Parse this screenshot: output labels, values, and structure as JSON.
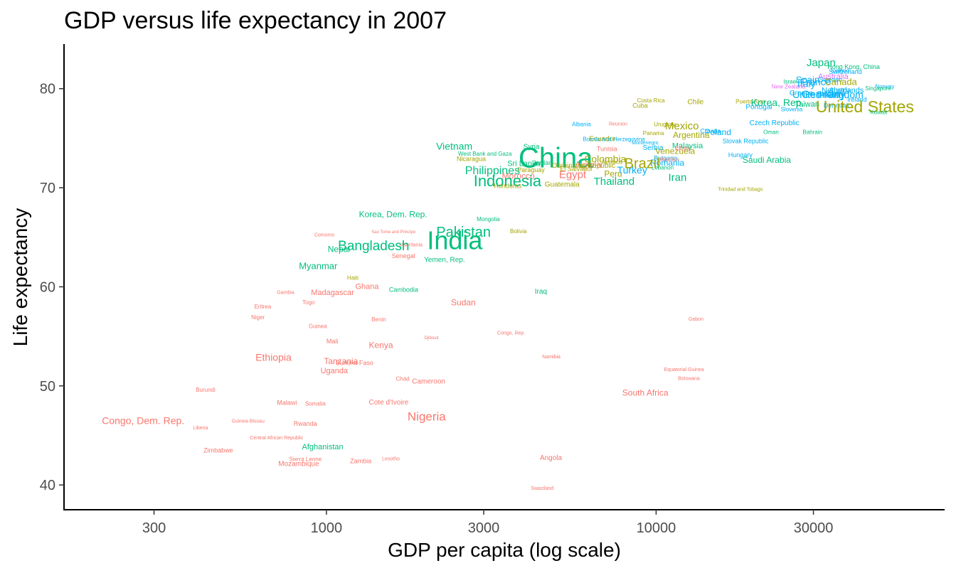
{
  "chart_data": {
    "type": "scatter",
    "mark": "text",
    "title": "GDP versus life expectancy in 2007",
    "xlabel": "GDP per capita (log scale)",
    "ylabel": "Life expectancy",
    "x_scale": "log10",
    "xlim": [
      160,
      75000
    ],
    "ylim": [
      37.5,
      84.5
    ],
    "x_ticks": [
      300,
      1000,
      3000,
      10000,
      30000
    ],
    "x_tick_labels": [
      "300",
      "1000",
      "3000",
      "10000",
      "30000"
    ],
    "y_ticks": [
      40,
      50,
      60,
      70,
      80
    ],
    "y_tick_labels": [
      "40",
      "50",
      "60",
      "70",
      "80"
    ],
    "grid": false,
    "legend": "none",
    "color_by": "continent",
    "size_by": "population",
    "colors": {
      "Africa": "#F8766D",
      "Americas": "#A3A500",
      "Asia": "#00BF7D",
      "Europe": "#00B0F6",
      "Oceania": "#E76BF3"
    },
    "points": [
      {
        "name": "Japan",
        "x": 31656,
        "y": 82.6,
        "c": "Asia",
        "s": 15
      },
      {
        "name": "Hong Kong, China",
        "x": 39725,
        "y": 82.2,
        "c": "Asia",
        "s": 9
      },
      {
        "name": "Switzerland",
        "x": 37506,
        "y": 81.7,
        "c": "Europe",
        "s": 9
      },
      {
        "name": "Iceland",
        "x": 36181,
        "y": 81.8,
        "c": "Europe",
        "s": 8
      },
      {
        "name": "Australia",
        "x": 34435,
        "y": 81.2,
        "c": "Oceania",
        "s": 11
      },
      {
        "name": "Sweden",
        "x": 33860,
        "y": 80.9,
        "c": "Europe",
        "s": 9
      },
      {
        "name": "Spain",
        "x": 28821,
        "y": 80.9,
        "c": "Europe",
        "s": 13
      },
      {
        "name": "Israel",
        "x": 25523,
        "y": 80.7,
        "c": "Asia",
        "s": 8
      },
      {
        "name": "France",
        "x": 30470,
        "y": 80.7,
        "c": "Europe",
        "s": 14
      },
      {
        "name": "Canada",
        "x": 36319,
        "y": 80.7,
        "c": "Americas",
        "s": 13
      },
      {
        "name": "Italy",
        "x": 28570,
        "y": 80.5,
        "c": "Europe",
        "s": 14
      },
      {
        "name": "New Zealand",
        "x": 25185,
        "y": 80.2,
        "c": "Oceania",
        "s": 8
      },
      {
        "name": "Norway",
        "x": 49357,
        "y": 80.2,
        "c": "Europe",
        "s": 8
      },
      {
        "name": "Singapore",
        "x": 47143,
        "y": 80.0,
        "c": "Asia",
        "s": 8
      },
      {
        "name": "Austria",
        "x": 36126,
        "y": 79.8,
        "c": "Europe",
        "s": 10
      },
      {
        "name": "Netherlands",
        "x": 36798,
        "y": 79.8,
        "c": "Europe",
        "s": 11
      },
      {
        "name": "Belgium",
        "x": 33693,
        "y": 79.4,
        "c": "Europe",
        "s": 10
      },
      {
        "name": "Greece",
        "x": 27538,
        "y": 79.5,
        "c": "Europe",
        "s": 10
      },
      {
        "name": "United Kingdom",
        "x": 33203,
        "y": 79.4,
        "c": "Europe",
        "s": 14
      },
      {
        "name": "Germany",
        "x": 32170,
        "y": 79.4,
        "c": "Europe",
        "s": 15
      },
      {
        "name": "Finland",
        "x": 33207,
        "y": 79.3,
        "c": "Europe",
        "s": 9
      },
      {
        "name": "Ireland",
        "x": 40676,
        "y": 78.9,
        "c": "Europe",
        "s": 9
      },
      {
        "name": "Puerto Rico",
        "x": 19329,
        "y": 78.7,
        "c": "Americas",
        "s": 8
      },
      {
        "name": "Korea, Rep.",
        "x": 23348,
        "y": 78.6,
        "c": "Asia",
        "s": 14
      },
      {
        "name": "Taiwan",
        "x": 28718,
        "y": 78.4,
        "c": "Asia",
        "s": 11
      },
      {
        "name": "Denmark",
        "x": 35278,
        "y": 78.3,
        "c": "Europe",
        "s": 9
      },
      {
        "name": "United States",
        "x": 42952,
        "y": 78.2,
        "c": "Americas",
        "s": 23
      },
      {
        "name": "Portugal",
        "x": 20510,
        "y": 78.1,
        "c": "Europe",
        "s": 10
      },
      {
        "name": "Slovenia",
        "x": 25768,
        "y": 77.9,
        "c": "Europe",
        "s": 8
      },
      {
        "name": "Kuwait",
        "x": 47307,
        "y": 77.6,
        "c": "Asia",
        "s": 8
      },
      {
        "name": "Costa Rica",
        "x": 9645,
        "y": 78.8,
        "c": "Americas",
        "s": 8
      },
      {
        "name": "Cuba",
        "x": 8948,
        "y": 78.3,
        "c": "Americas",
        "s": 9
      },
      {
        "name": "Chile",
        "x": 13172,
        "y": 78.6,
        "c": "Americas",
        "s": 10
      },
      {
        "name": "Czech Republic",
        "x": 22833,
        "y": 76.5,
        "c": "Europe",
        "s": 10
      },
      {
        "name": "Albania",
        "x": 5937,
        "y": 76.4,
        "c": "Europe",
        "s": 8
      },
      {
        "name": "Reunion",
        "x": 7670,
        "y": 76.4,
        "c": "Africa",
        "s": 7
      },
      {
        "name": "Uruguay",
        "x": 10611,
        "y": 76.4,
        "c": "Americas",
        "s": 8
      },
      {
        "name": "Mexico",
        "x": 11978,
        "y": 76.2,
        "c": "Americas",
        "s": 15
      },
      {
        "name": "Panama",
        "x": 9809,
        "y": 75.5,
        "c": "Americas",
        "s": 8
      },
      {
        "name": "Oman",
        "x": 22316,
        "y": 75.6,
        "c": "Asia",
        "s": 8
      },
      {
        "name": "Bahrain",
        "x": 29796,
        "y": 75.6,
        "c": "Asia",
        "s": 8
      },
      {
        "name": "Poland",
        "x": 15390,
        "y": 75.6,
        "c": "Europe",
        "s": 12
      },
      {
        "name": "Argentina",
        "x": 12779,
        "y": 75.3,
        "c": "Americas",
        "s": 12
      },
      {
        "name": "Ecuador",
        "x": 6873,
        "y": 74.9,
        "c": "Americas",
        "s": 10
      },
      {
        "name": "Croatia",
        "x": 14619,
        "y": 75.7,
        "c": "Europe",
        "s": 9
      },
      {
        "name": "Slovak Republic",
        "x": 18678,
        "y": 74.7,
        "c": "Europe",
        "s": 9
      },
      {
        "name": "Bosnia and Herzegovina",
        "x": 7446,
        "y": 74.9,
        "c": "Europe",
        "s": 8
      },
      {
        "name": "Montenegro",
        "x": 9254,
        "y": 74.5,
        "c": "Europe",
        "s": 7
      },
      {
        "name": "Malaysia",
        "x": 12452,
        "y": 74.2,
        "c": "Asia",
        "s": 11
      },
      {
        "name": "Vietnam",
        "x": 2442,
        "y": 74.2,
        "c": "Asia",
        "s": 14
      },
      {
        "name": "Syria",
        "x": 4185,
        "y": 74.1,
        "c": "Asia",
        "s": 10
      },
      {
        "name": "Tunisia",
        "x": 7093,
        "y": 73.9,
        "c": "Africa",
        "s": 9
      },
      {
        "name": "Serbia",
        "x": 9787,
        "y": 74.0,
        "c": "Europe",
        "s": 10
      },
      {
        "name": "Venezuela",
        "x": 11416,
        "y": 73.7,
        "c": "Americas",
        "s": 12
      },
      {
        "name": "West Bank and Gaza",
        "x": 3025,
        "y": 73.4,
        "c": "Asia",
        "s": 8
      },
      {
        "name": "Hungary",
        "x": 18009,
        "y": 73.3,
        "c": "Europe",
        "s": 9
      },
      {
        "name": "Nicaragua",
        "x": 2749,
        "y": 72.9,
        "c": "Americas",
        "s": 9
      },
      {
        "name": "Saudi Arabia",
        "x": 21654,
        "y": 72.8,
        "c": "Asia",
        "s": 12
      },
      {
        "name": "China",
        "x": 4959,
        "y": 73.0,
        "c": "Asia",
        "s": 40
      },
      {
        "name": "Colombia",
        "x": 7006,
        "y": 72.9,
        "c": "Americas",
        "s": 14
      },
      {
        "name": "Bulgaria",
        "x": 10681,
        "y": 73.0,
        "c": "Europe",
        "s": 9
      },
      {
        "name": "Mauritius",
        "x": 10957,
        "y": 72.8,
        "c": "Africa",
        "s": 7
      },
      {
        "name": "Sri Lanka",
        "x": 3970,
        "y": 72.4,
        "c": "Asia",
        "s": 11
      },
      {
        "name": "Jamaica",
        "x": 7321,
        "y": 72.6,
        "c": "Americas",
        "s": 8
      },
      {
        "name": "Romania",
        "x": 10808,
        "y": 72.5,
        "c": "Europe",
        "s": 12
      },
      {
        "name": "Algeria",
        "x": 6223,
        "y": 72.3,
        "c": "Africa",
        "s": 12
      },
      {
        "name": "Dominican Republic",
        "x": 6025,
        "y": 72.2,
        "c": "Americas",
        "s": 10
      },
      {
        "name": "Jordan",
        "x": 4519,
        "y": 72.5,
        "c": "Asia",
        "s": 9
      },
      {
        "name": "Brazil",
        "x": 9066,
        "y": 72.4,
        "c": "Americas",
        "s": 20
      },
      {
        "name": "Libya",
        "x": 12057,
        "y": 74.0,
        "c": "Africa",
        "s": 9
      },
      {
        "name": "El Salvador",
        "x": 5728,
        "y": 71.9,
        "c": "Americas",
        "s": 9
      },
      {
        "name": "Lebanon",
        "x": 10461,
        "y": 72.0,
        "c": "Asia",
        "s": 8
      },
      {
        "name": "Paraguay",
        "x": 4173,
        "y": 71.8,
        "c": "Americas",
        "s": 9
      },
      {
        "name": "Turkey",
        "x": 8458,
        "y": 71.8,
        "c": "Europe",
        "s": 14
      },
      {
        "name": "Philippines",
        "x": 3190,
        "y": 71.7,
        "c": "Asia",
        "s": 16
      },
      {
        "name": "Peru",
        "x": 7409,
        "y": 71.4,
        "c": "Americas",
        "s": 12
      },
      {
        "name": "Egypt",
        "x": 5581,
        "y": 71.3,
        "c": "Africa",
        "s": 15
      },
      {
        "name": "Morocco",
        "x": 3820,
        "y": 71.2,
        "c": "Africa",
        "s": 12
      },
      {
        "name": "Iran",
        "x": 11606,
        "y": 71.0,
        "c": "Asia",
        "s": 15
      },
      {
        "name": "Indonesia",
        "x": 3541,
        "y": 70.7,
        "c": "Asia",
        "s": 22
      },
      {
        "name": "Thailand",
        "x": 7458,
        "y": 70.6,
        "c": "Asia",
        "s": 15
      },
      {
        "name": "Honduras",
        "x": 3548,
        "y": 70.2,
        "c": "Americas",
        "s": 9
      },
      {
        "name": "Guatemala",
        "x": 5186,
        "y": 70.3,
        "c": "Americas",
        "s": 10
      },
      {
        "name": "Trinidad and Tobago",
        "x": 18009,
        "y": 69.8,
        "c": "Americas",
        "s": 7
      },
      {
        "name": "Korea, Dem. Rep.",
        "x": 1593,
        "y": 67.3,
        "c": "Asia",
        "s": 12
      },
      {
        "name": "Mongolia",
        "x": 3096,
        "y": 66.8,
        "c": "Asia",
        "s": 8
      },
      {
        "name": "Bolivia",
        "x": 3822,
        "y": 65.6,
        "c": "Americas",
        "s": 8
      },
      {
        "name": "Sao Tome and Principe",
        "x": 1598,
        "y": 65.5,
        "c": "Africa",
        "s": 6
      },
      {
        "name": "Pakistan",
        "x": 2605,
        "y": 65.5,
        "c": "Asia",
        "s": 20
      },
      {
        "name": "Comoros",
        "x": 986,
        "y": 65.2,
        "c": "Africa",
        "s": 7
      },
      {
        "name": "India",
        "x": 2452,
        "y": 64.7,
        "c": "Asia",
        "s": 36
      },
      {
        "name": "Mauritania",
        "x": 1803,
        "y": 64.2,
        "c": "Africa",
        "s": 7
      },
      {
        "name": "Bangladesh",
        "x": 1391,
        "y": 64.1,
        "c": "Asia",
        "s": 19
      },
      {
        "name": "Nepal",
        "x": 1091,
        "y": 63.8,
        "c": "Asia",
        "s": 12
      },
      {
        "name": "Senegal",
        "x": 1712,
        "y": 63.1,
        "c": "Africa",
        "s": 9
      },
      {
        "name": "Yemen, Rep.",
        "x": 2281,
        "y": 62.7,
        "c": "Asia",
        "s": 10
      },
      {
        "name": "Myanmar",
        "x": 944,
        "y": 62.1,
        "c": "Asia",
        "s": 13
      },
      {
        "name": "Haiti",
        "x": 1202,
        "y": 60.9,
        "c": "Americas",
        "s": 8
      },
      {
        "name": "Ghana",
        "x": 1328,
        "y": 60.0,
        "c": "Africa",
        "s": 11
      },
      {
        "name": "Gambia",
        "x": 752,
        "y": 59.4,
        "c": "Africa",
        "s": 7
      },
      {
        "name": "Madagascar",
        "x": 1044,
        "y": 59.4,
        "c": "Africa",
        "s": 11
      },
      {
        "name": "Cambodia",
        "x": 1714,
        "y": 59.7,
        "c": "Asia",
        "s": 9
      },
      {
        "name": "Iraq",
        "x": 4471,
        "y": 59.5,
        "c": "Asia",
        "s": 10
      },
      {
        "name": "Togo",
        "x": 883,
        "y": 58.4,
        "c": "Africa",
        "s": 8
      },
      {
        "name": "Sudan",
        "x": 2602,
        "y": 58.4,
        "c": "Africa",
        "s": 12
      },
      {
        "name": "Eritrea",
        "x": 641,
        "y": 58.0,
        "c": "Africa",
        "s": 8
      },
      {
        "name": "Niger",
        "x": 620,
        "y": 56.9,
        "c": "Africa",
        "s": 8
      },
      {
        "name": "Gabon",
        "x": 13206,
        "y": 56.7,
        "c": "Africa",
        "s": 7
      },
      {
        "name": "Benin",
        "x": 1441,
        "y": 56.7,
        "c": "Africa",
        "s": 8
      },
      {
        "name": "Guinea",
        "x": 942,
        "y": 56.0,
        "c": "Africa",
        "s": 8
      },
      {
        "name": "Congo, Rep.",
        "x": 3633,
        "y": 55.3,
        "c": "Africa",
        "s": 7
      },
      {
        "name": "Djibouti",
        "x": 2082,
        "y": 54.8,
        "c": "Africa",
        "s": 6
      },
      {
        "name": "Mali",
        "x": 1042,
        "y": 54.5,
        "c": "Africa",
        "s": 9
      },
      {
        "name": "Kenya",
        "x": 1463,
        "y": 54.1,
        "c": "Africa",
        "s": 12
      },
      {
        "name": "Ethiopia",
        "x": 691,
        "y": 52.9,
        "c": "Africa",
        "s": 14
      },
      {
        "name": "Namibia",
        "x": 4811,
        "y": 52.9,
        "c": "Africa",
        "s": 7
      },
      {
        "name": "Tanzania",
        "x": 1107,
        "y": 52.5,
        "c": "Africa",
        "s": 12
      },
      {
        "name": "Burkina Faso",
        "x": 1217,
        "y": 52.3,
        "c": "Africa",
        "s": 9
      },
      {
        "name": "Equatorial Guinea",
        "x": 12154,
        "y": 51.6,
        "c": "Africa",
        "s": 7
      },
      {
        "name": "Uganda",
        "x": 1056,
        "y": 51.5,
        "c": "Africa",
        "s": 11
      },
      {
        "name": "Botswana",
        "x": 12570,
        "y": 50.7,
        "c": "Africa",
        "s": 7
      },
      {
        "name": "Chad",
        "x": 1704,
        "y": 50.7,
        "c": "Africa",
        "s": 8
      },
      {
        "name": "Cameroon",
        "x": 2042,
        "y": 50.4,
        "c": "Africa",
        "s": 10
      },
      {
        "name": "Burundi",
        "x": 430,
        "y": 49.6,
        "c": "Africa",
        "s": 8
      },
      {
        "name": "South Africa",
        "x": 9270,
        "y": 49.3,
        "c": "Africa",
        "s": 12
      },
      {
        "name": "Malawi",
        "x": 759,
        "y": 48.3,
        "c": "Africa",
        "s": 9
      },
      {
        "name": "Somalia",
        "x": 926,
        "y": 48.2,
        "c": "Africa",
        "s": 8
      },
      {
        "name": "Cote d'Ivoire",
        "x": 1545,
        "y": 48.3,
        "c": "Africa",
        "s": 10
      },
      {
        "name": "Nigeria",
        "x": 2014,
        "y": 46.9,
        "c": "Africa",
        "s": 17
      },
      {
        "name": "Congo, Dem. Rep.",
        "x": 278,
        "y": 46.5,
        "c": "Africa",
        "s": 14
      },
      {
        "name": "Guinea-Bissau",
        "x": 579,
        "y": 46.4,
        "c": "Africa",
        "s": 7
      },
      {
        "name": "Rwanda",
        "x": 863,
        "y": 46.2,
        "c": "Africa",
        "s": 9
      },
      {
        "name": "Liberia",
        "x": 415,
        "y": 45.7,
        "c": "Africa",
        "s": 7
      },
      {
        "name": "Central African Republic",
        "x": 706,
        "y": 44.7,
        "c": "Africa",
        "s": 7
      },
      {
        "name": "Afghanistan",
        "x": 974,
        "y": 43.8,
        "c": "Asia",
        "s": 11
      },
      {
        "name": "Zimbabwe",
        "x": 470,
        "y": 43.5,
        "c": "Africa",
        "s": 9
      },
      {
        "name": "Sierra Leone",
        "x": 863,
        "y": 42.6,
        "c": "Africa",
        "s": 8
      },
      {
        "name": "Mozambique",
        "x": 824,
        "y": 42.1,
        "c": "Africa",
        "s": 10
      },
      {
        "name": "Zambia",
        "x": 1271,
        "y": 42.4,
        "c": "Africa",
        "s": 9
      },
      {
        "name": "Lesotho",
        "x": 1569,
        "y": 42.6,
        "c": "Africa",
        "s": 7
      },
      {
        "name": "Angola",
        "x": 4797,
        "y": 42.7,
        "c": "Africa",
        "s": 10
      },
      {
        "name": "Swaziland",
        "x": 4513,
        "y": 39.6,
        "c": "Africa",
        "s": 7
      }
    ]
  }
}
